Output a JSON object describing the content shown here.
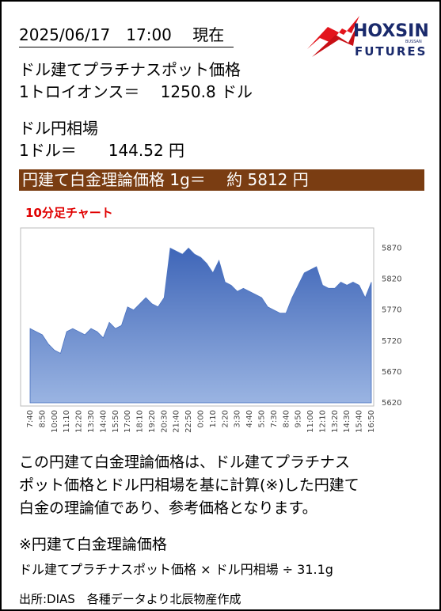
{
  "header": {
    "timestamp": "2025/06/17　17:00　 現在",
    "logo_main": "HOXSIN",
    "logo_small": "BUSSAN",
    "logo_sub": "FUTURES"
  },
  "platinum": {
    "label": "ドル建てプラチナスポット価格",
    "line": "1トロイオンス＝　 1250.8 ドル"
  },
  "fx": {
    "label": "ドル円相場",
    "line": "1ドル＝　　144.52 円"
  },
  "banner": "円建て白金理論価格 1g＝　 約 5812 円",
  "chart_data": {
    "type": "area",
    "title": "10分足チャート",
    "color": "#4a72c0",
    "categories": [
      "7:40",
      null,
      "8:50",
      null,
      "10:00",
      null,
      "11:10",
      null,
      "12:20",
      null,
      "13:30",
      null,
      "14:40",
      null,
      "15:50",
      null,
      "17:00",
      null,
      "18:10",
      null,
      "19:20",
      null,
      "20:30",
      null,
      "21:40",
      null,
      "22:50",
      null,
      "0:00",
      null,
      "1:10",
      null,
      "2:20",
      null,
      "3:30",
      null,
      "4:40",
      null,
      "5:50",
      null,
      "7:30",
      null,
      "8:40",
      null,
      "9:50",
      null,
      "11:00",
      null,
      "12:10",
      null,
      "13:20",
      null,
      "14:30",
      null,
      "15:40",
      null,
      "16:50"
    ],
    "values": [
      5740,
      5735,
      5730,
      5715,
      5705,
      5700,
      5735,
      5740,
      5735,
      5730,
      5740,
      5735,
      5725,
      5750,
      5740,
      5745,
      5775,
      5770,
      5780,
      5790,
      5780,
      5775,
      5790,
      5870,
      5865,
      5860,
      5870,
      5860,
      5855,
      5845,
      5830,
      5850,
      5815,
      5810,
      5800,
      5805,
      5800,
      5795,
      5790,
      5775,
      5770,
      5765,
      5765,
      5790,
      5810,
      5830,
      5835,
      5840,
      5810,
      5805,
      5805,
      5815,
      5810,
      5815,
      5810,
      5790,
      5815
    ],
    "ylim": [
      5620,
      5900
    ],
    "yticks": [
      5620,
      5670,
      5720,
      5770,
      5820,
      5870
    ]
  },
  "note": {
    "paragraph": [
      "この円建て白金理論価格は、ドル建てプラチナス",
      "ポット価格とドル円相場を基に計算(※)した円建て",
      "白金の理論値であり、参考価格となります。"
    ],
    "title": "※円建て白金理論価格",
    "formula": "ドル建てプラチナスポット価格 × ドル円相場 ÷ 31.1g"
  },
  "source": "出所:DIAS　各種データより北辰物産作成"
}
